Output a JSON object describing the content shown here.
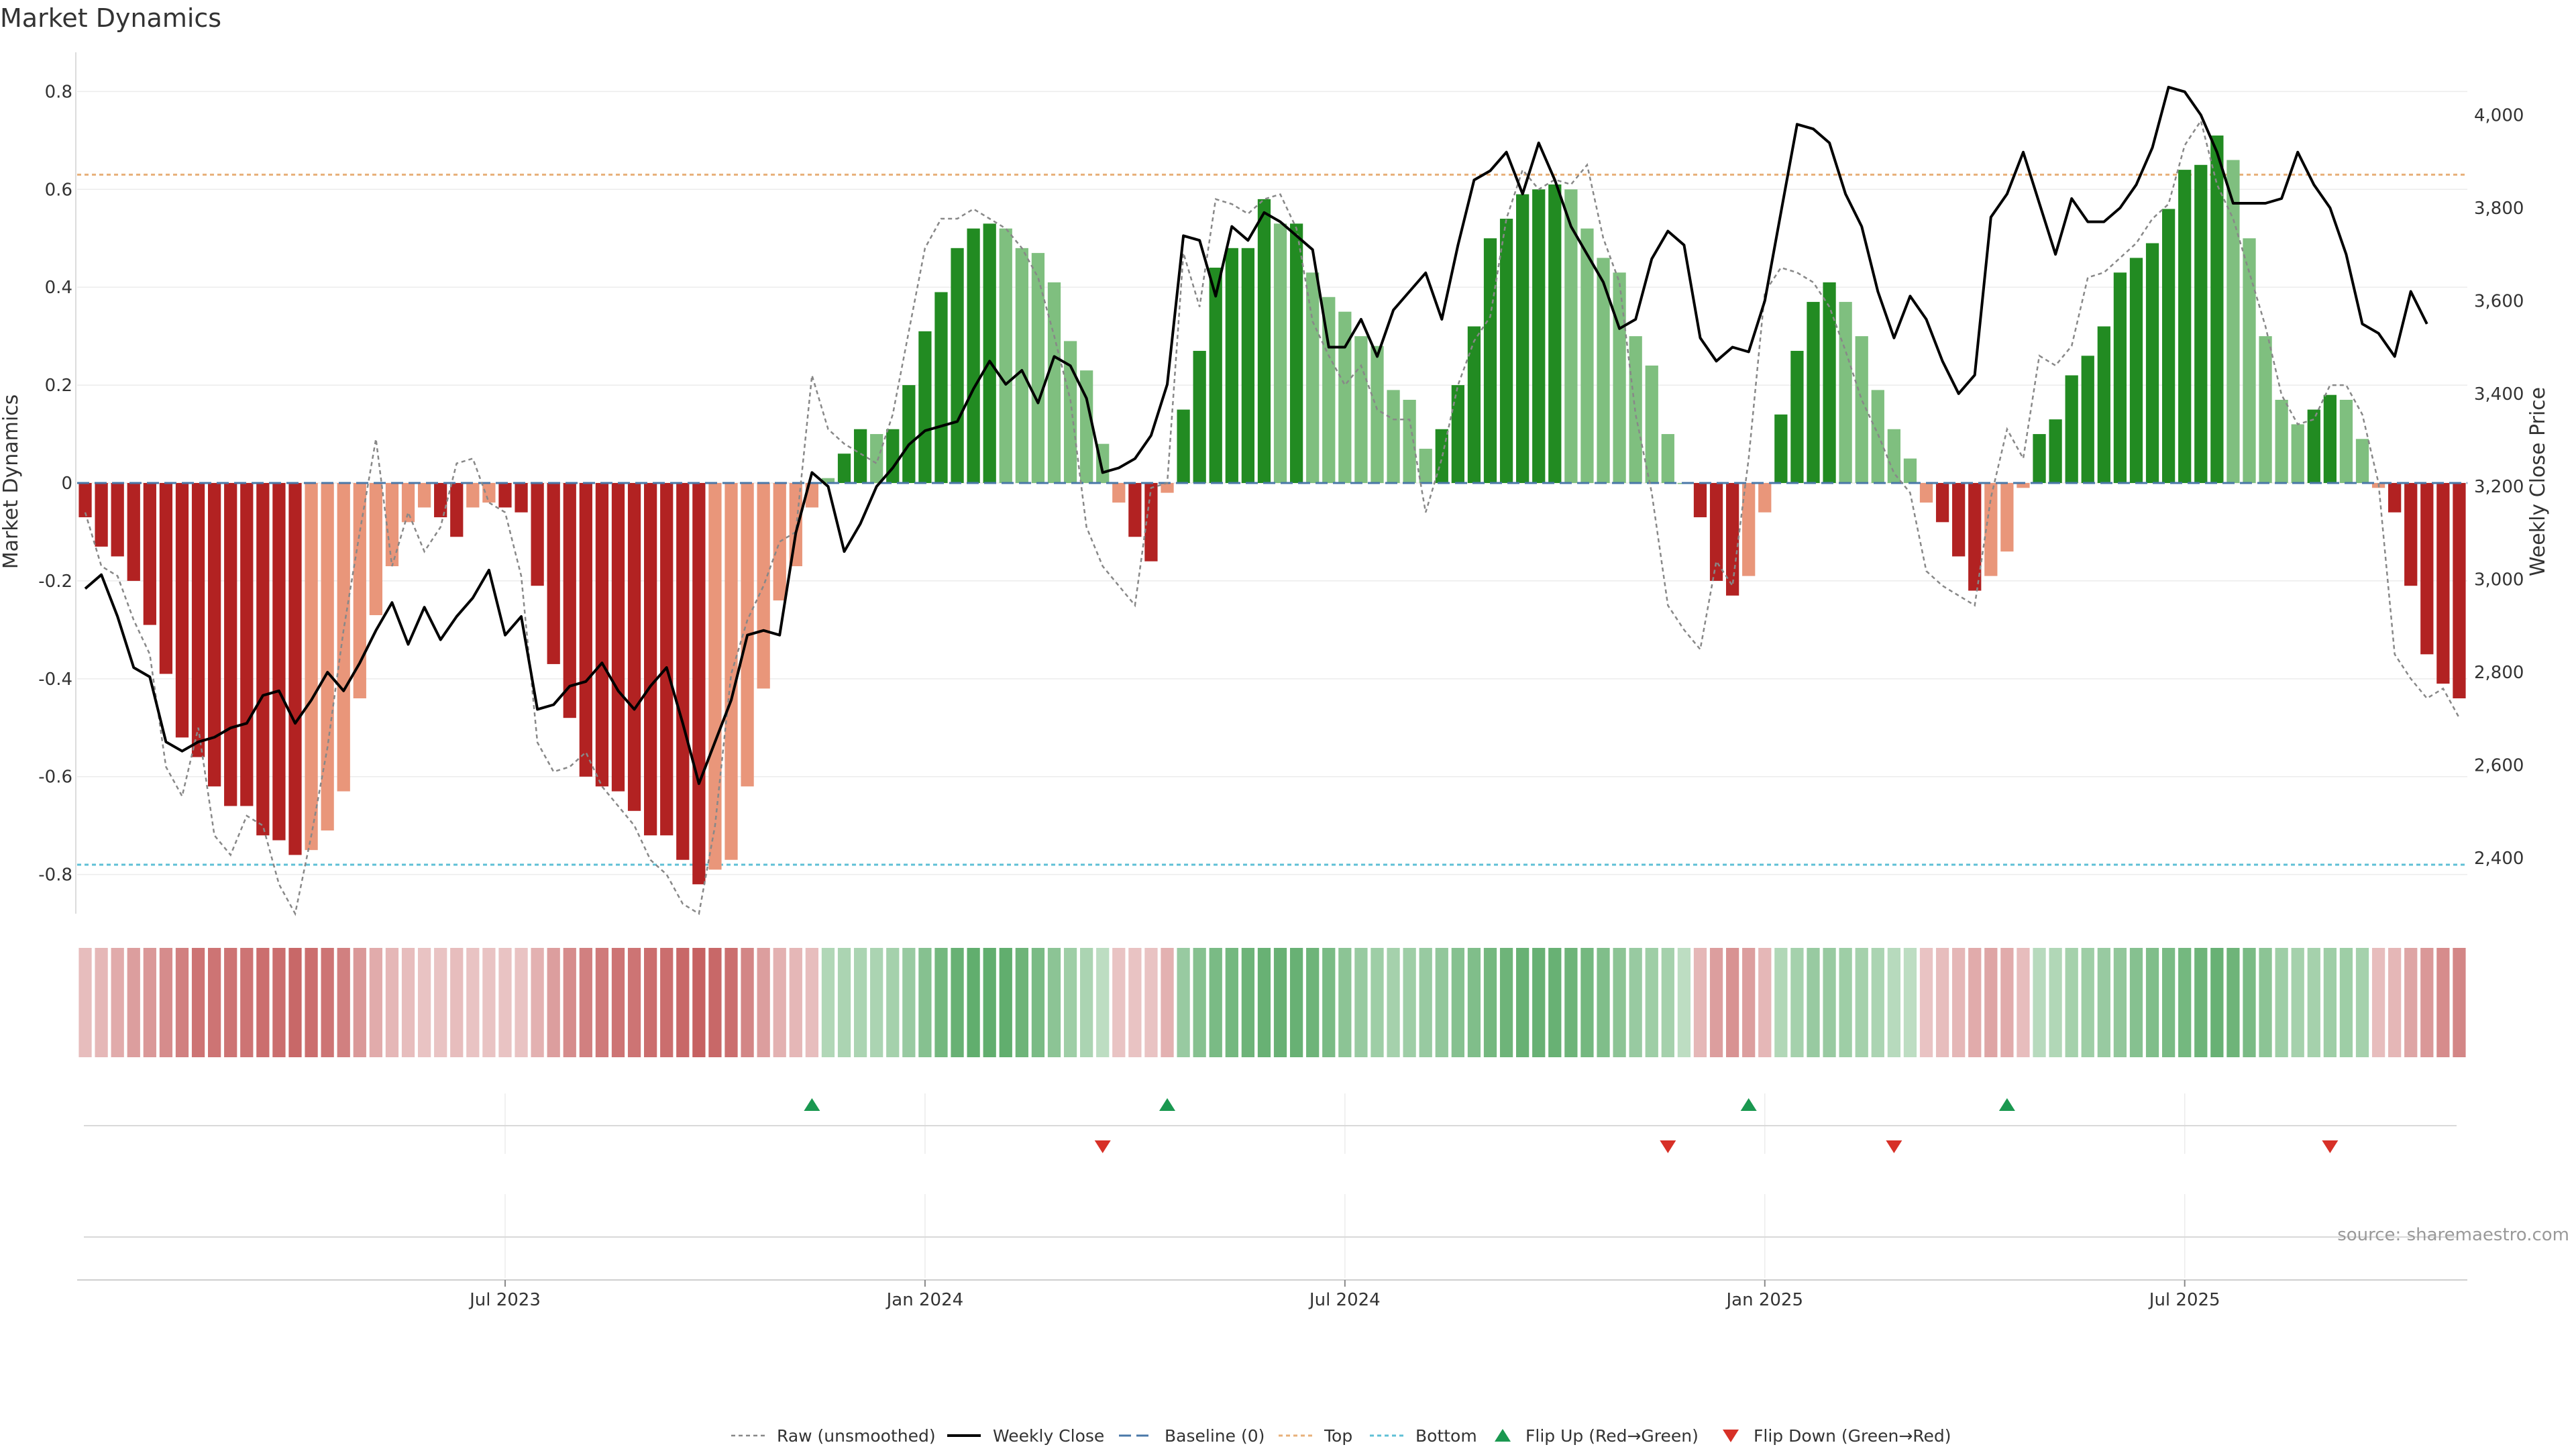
{
  "chart_data": {
    "type": "bar",
    "title": "Market Dynamics",
    "ylabel_left": "Market Dynamics",
    "ylabel_right": "Weekly Close Price",
    "source": "source: sharemaestro.com",
    "left_ylim": [
      -0.88,
      0.88
    ],
    "right_ylim": [
      2280,
      4135
    ],
    "left_ticks": [
      {
        "v": 0.8,
        "label": "0.8"
      },
      {
        "v": 0.6,
        "label": "0.6"
      },
      {
        "v": 0.4,
        "label": "0.4"
      },
      {
        "v": 0.2,
        "label": "0.2"
      },
      {
        "v": 0,
        "label": "0"
      },
      {
        "v": -0.2,
        "label": "-0.2"
      },
      {
        "v": -0.4,
        "label": "-0.4"
      },
      {
        "v": -0.6,
        "label": "-0.6"
      },
      {
        "v": -0.8,
        "label": "-0.8"
      }
    ],
    "right_ticks": [
      {
        "v": 4000,
        "label": "4,000"
      },
      {
        "v": 3800,
        "label": "3,800"
      },
      {
        "v": 3600,
        "label": "3,600"
      },
      {
        "v": 3400,
        "label": "3,400"
      },
      {
        "v": 3200,
        "label": "3,200"
      },
      {
        "v": 3000,
        "label": "3,000"
      },
      {
        "v": 2800,
        "label": "2,800"
      },
      {
        "v": 2600,
        "label": "2,600"
      },
      {
        "v": 2400,
        "label": "2,400"
      }
    ],
    "x_ticks": [
      {
        "week": 26,
        "label": "Jul 2023"
      },
      {
        "week": 52,
        "label": "Jan 2024"
      },
      {
        "week": 78,
        "label": "Jul 2024"
      },
      {
        "week": 104,
        "label": "Jan 2025"
      },
      {
        "week": 130,
        "label": "Jul 2025"
      }
    ],
    "top_level": 0.63,
    "bottom_level": -0.78,
    "baseline": 0,
    "colors": {
      "strong_red": "#b22222",
      "weak_red": "#e9967a",
      "strong_green": "#228b22",
      "weak_green": "#7fbf7f",
      "weekly_close": "#000000",
      "raw": "#888888",
      "baseline": "#4a78a8",
      "top": "#e8b07a",
      "bottom": "#5fc0d6",
      "flip_up": "#1a9850",
      "flip_down": "#d73027"
    },
    "series": [
      {
        "name": "Market Dynamics",
        "values": [
          -0.07,
          -0.13,
          -0.15,
          -0.2,
          -0.29,
          -0.39,
          -0.52,
          -0.56,
          -0.62,
          -0.66,
          -0.66,
          -0.72,
          -0.73,
          -0.76,
          -0.75,
          -0.71,
          -0.63,
          -0.44,
          -0.27,
          -0.17,
          -0.08,
          -0.05,
          -0.07,
          -0.11,
          -0.05,
          -0.04,
          -0.05,
          -0.06,
          -0.21,
          -0.37,
          -0.48,
          -0.6,
          -0.62,
          -0.63,
          -0.67,
          -0.72,
          -0.72,
          -0.77,
          -0.82,
          -0.79,
          -0.77,
          -0.62,
          -0.42,
          -0.24,
          -0.17,
          -0.05,
          0.01,
          0.06,
          0.11,
          0.1,
          0.11,
          0.2,
          0.31,
          0.39,
          0.48,
          0.52,
          0.53,
          0.52,
          0.48,
          0.47,
          0.41,
          0.29,
          0.23,
          0.08,
          -0.04,
          -0.11,
          -0.16,
          -0.02,
          0.15,
          0.27,
          0.44,
          0.48,
          0.48,
          0.58,
          0.53,
          0.53,
          0.43,
          0.38,
          0.35,
          0.3,
          0.28,
          0.19,
          0.17,
          0.07,
          0.11,
          0.2,
          0.32,
          0.5,
          0.54,
          0.59,
          0.6,
          0.61,
          0.6,
          0.52,
          0.46,
          0.43,
          0.3,
          0.24,
          0.1,
          0.0,
          -0.07,
          -0.2,
          -0.23,
          -0.19,
          -0.06,
          0.14,
          0.27,
          0.37,
          0.41,
          0.37,
          0.3,
          0.19,
          0.11,
          0.05,
          -0.04,
          -0.08,
          -0.15,
          -0.22,
          -0.19,
          -0.14,
          -0.01,
          0.1,
          0.13,
          0.22,
          0.26,
          0.32,
          0.43,
          0.46,
          0.49,
          0.56,
          0.64,
          0.65,
          0.71,
          0.66,
          0.5,
          0.3,
          0.17,
          0.12,
          0.15,
          0.18,
          0.17,
          0.09,
          -0.01,
          -0.06,
          -0.21,
          -0.35,
          -0.41,
          -0.44
        ]
      },
      {
        "name": "Raw (unsmoothed)",
        "values": [
          -0.06,
          -0.17,
          -0.19,
          -0.28,
          -0.35,
          -0.58,
          -0.64,
          -0.5,
          -0.72,
          -0.76,
          -0.68,
          -0.7,
          -0.82,
          -0.88,
          -0.72,
          -0.54,
          -0.3,
          -0.1,
          0.09,
          -0.17,
          -0.06,
          -0.14,
          -0.09,
          0.04,
          0.05,
          -0.04,
          -0.06,
          -0.19,
          -0.53,
          -0.59,
          -0.58,
          -0.55,
          -0.62,
          -0.66,
          -0.7,
          -0.77,
          -0.8,
          -0.86,
          -0.88,
          -0.7,
          -0.39,
          -0.28,
          -0.21,
          -0.12,
          -0.1,
          0.22,
          0.11,
          0.08,
          0.06,
          0.04,
          0.14,
          0.31,
          0.48,
          0.54,
          0.54,
          0.56,
          0.54,
          0.52,
          0.48,
          0.42,
          0.3,
          0.17,
          -0.09,
          -0.17,
          -0.21,
          -0.25,
          -0.01,
          0.0,
          0.47,
          0.36,
          0.58,
          0.57,
          0.55,
          0.58,
          0.59,
          0.52,
          0.33,
          0.26,
          0.2,
          0.24,
          0.15,
          0.13,
          0.13,
          -0.06,
          0.05,
          0.2,
          0.29,
          0.34,
          0.54,
          0.64,
          0.6,
          0.62,
          0.61,
          0.65,
          0.5,
          0.41,
          0.14,
          -0.02,
          -0.25,
          -0.3,
          -0.34,
          -0.16,
          -0.21,
          0.05,
          0.39,
          0.44,
          0.43,
          0.41,
          0.36,
          0.27,
          0.17,
          0.1,
          0.02,
          -0.02,
          -0.18,
          -0.21,
          -0.23,
          -0.25,
          -0.03,
          0.11,
          0.05,
          0.26,
          0.24,
          0.28,
          0.42,
          0.43,
          0.46,
          0.49,
          0.54,
          0.57,
          0.69,
          0.74,
          0.61,
          0.54,
          0.43,
          0.32,
          0.18,
          0.12,
          0.13,
          0.2,
          0.2,
          0.14,
          0.0,
          -0.35,
          -0.4,
          -0.44,
          -0.42,
          -0.48
        ]
      },
      {
        "name": "Weekly Close",
        "values": [
          2980,
          3010,
          2920,
          2810,
          2790,
          2650,
          2630,
          2650,
          2660,
          2680,
          2690,
          2750,
          2760,
          2690,
          2740,
          2800,
          2760,
          2820,
          2890,
          2950,
          2860,
          2940,
          2870,
          2920,
          2960,
          3020,
          2880,
          2920,
          2720,
          2730,
          2770,
          2780,
          2820,
          2760,
          2720,
          2770,
          2810,
          2690,
          2560,
          2650,
          2740,
          2880,
          2890,
          2880,
          3100,
          3230,
          3200,
          3060,
          3120,
          3200,
          3240,
          3290,
          3320,
          3330,
          3340,
          3410,
          3470,
          3420,
          3450,
          3380,
          3480,
          3460,
          3390,
          3230,
          3240,
          3260,
          3310,
          3420,
          3740,
          3730,
          3610,
          3760,
          3730,
          3790,
          3770,
          3740,
          3710,
          3500,
          3500,
          3560,
          3480,
          3580,
          3620,
          3660,
          3560,
          3720,
          3860,
          3880,
          3920,
          3830,
          3940,
          3860,
          3760,
          3700,
          3640,
          3540,
          3560,
          3690,
          3750,
          3720,
          3520,
          3470,
          3500,
          3490,
          3600,
          3790,
          3980,
          3970,
          3940,
          3830,
          3760,
          3620,
          3520,
          3610,
          3560,
          3470,
          3400,
          3440,
          3780,
          3830,
          3920,
          3810,
          3700,
          3820,
          3770,
          3770,
          3800,
          3850,
          3930,
          4060,
          4050,
          4000,
          3920,
          3810,
          3810,
          3810,
          3820,
          3920,
          3850,
          3800,
          3700,
          3550,
          3530,
          3480,
          3620,
          3550
        ]
      }
    ],
    "heatmap_strength": [
      0.25,
      0.3,
      0.4,
      0.5,
      0.55,
      0.65,
      0.75,
      0.85,
      0.85,
      0.85,
      0.85,
      0.9,
      0.9,
      0.95,
      0.9,
      0.85,
      0.75,
      0.55,
      0.4,
      0.3,
      0.25,
      0.2,
      0.2,
      0.25,
      0.2,
      0.2,
      0.2,
      0.2,
      0.35,
      0.5,
      0.65,
      0.75,
      0.8,
      0.85,
      0.85,
      0.9,
      0.9,
      0.95,
      1.0,
      0.95,
      0.9,
      0.7,
      0.5,
      0.35,
      0.3,
      0.25,
      0.35,
      0.4,
      0.4,
      0.4,
      0.45,
      0.55,
      0.7,
      0.85,
      0.95,
      1.0,
      1.0,
      1.0,
      0.9,
      0.8,
      0.65,
      0.5,
      0.4,
      0.25,
      0.2,
      0.2,
      0.2,
      0.35,
      0.55,
      0.7,
      0.8,
      0.85,
      0.9,
      0.95,
      0.95,
      0.95,
      0.9,
      0.8,
      0.65,
      0.55,
      0.5,
      0.45,
      0.5,
      0.55,
      0.6,
      0.7,
      0.75,
      0.85,
      0.9,
      0.95,
      0.95,
      0.95,
      0.9,
      0.85,
      0.75,
      0.65,
      0.55,
      0.5,
      0.45,
      0.25,
      0.3,
      0.5,
      0.6,
      0.5,
      0.3,
      0.35,
      0.45,
      0.55,
      0.55,
      0.5,
      0.45,
      0.4,
      0.3,
      0.25,
      0.2,
      0.25,
      0.3,
      0.4,
      0.45,
      0.4,
      0.25,
      0.3,
      0.35,
      0.45,
      0.5,
      0.55,
      0.6,
      0.7,
      0.75,
      0.8,
      0.85,
      0.9,
      0.95,
      0.9,
      0.8,
      0.65,
      0.5,
      0.45,
      0.45,
      0.5,
      0.5,
      0.45,
      0.25,
      0.3,
      0.45,
      0.55,
      0.65,
      0.7
    ],
    "flips": {
      "up": [
        45,
        67,
        103,
        119
      ],
      "down": [
        63,
        98,
        112,
        139
      ]
    },
    "legend": [
      {
        "label": "Raw (unsmoothed)",
        "kind": "raw"
      },
      {
        "label": "Weekly Close",
        "kind": "close"
      },
      {
        "label": "Baseline (0)",
        "kind": "baseline"
      },
      {
        "label": "Top",
        "kind": "top"
      },
      {
        "label": "Bottom",
        "kind": "bottom"
      },
      {
        "label": "Flip Up (Red→Green)",
        "kind": "flip_up"
      },
      {
        "label": "Flip Down (Green→Red)",
        "kind": "flip_down"
      }
    ],
    "legend_placement": "bottom-center",
    "grid": true
  }
}
